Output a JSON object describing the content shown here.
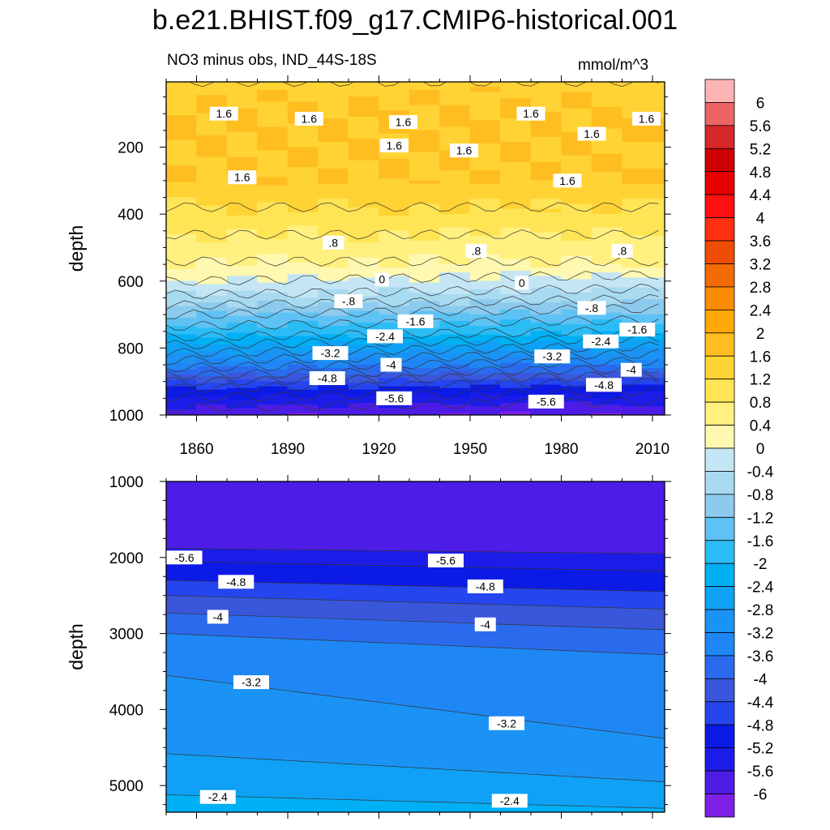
{
  "title": "b.e21.BHIST.f09_g17.CMIP6-historical.001",
  "subtitle": "NO3 minus obs, IND_44S-18S",
  "units": "mmol/m^3",
  "colors": {
    "pos": [
      "#fff8b0",
      "#fff080",
      "#ffe455",
      "#ffd334",
      "#ffbe20",
      "#ffa808",
      "#f98c02",
      "#f26c03",
      "#ef4d05",
      "#fe3010",
      "#ff1010",
      "#e60000",
      "#cc0000",
      "#d62828",
      "#ec6464",
      "#fcb4b4"
    ],
    "neg": [
      "#c4e6f4",
      "#a8daf0",
      "#8ccbee",
      "#5ec2f4",
      "#2cbcf5",
      "#00b0f4",
      "#0fa1f5",
      "#1a93f5",
      "#1e87f5",
      "#2a6bee",
      "#3a57db",
      "#2545ef",
      "#0c1ae6",
      "#1c1ce9",
      "#4d1ce6",
      "#7f20e6"
    ]
  },
  "chart_data": [
    {
      "type": "heatmap",
      "name": "upper-panel",
      "x": [
        1850,
        1860,
        1870,
        1880,
        1890,
        1900,
        1910,
        1920,
        1930,
        1940,
        1950,
        1960,
        1970,
        1980,
        1990,
        2000,
        2014
      ],
      "xticks": [
        1860,
        1890,
        1920,
        1950,
        1980,
        2010
      ],
      "xlim": [
        1850,
        2014
      ],
      "ylim": [
        1000,
        5
      ],
      "yticks": [
        200,
        400,
        600,
        800,
        1000
      ],
      "ylabel": "depth",
      "levels_note": "contour interval 0.4 mmol/m^3",
      "depth_profile": [
        [
          5,
          1.45
        ],
        [
          100,
          1.62
        ],
        [
          300,
          1.55
        ],
        [
          400,
          1.1
        ],
        [
          500,
          0.6
        ],
        [
          560,
          0.3
        ],
        [
          600,
          0.0
        ],
        [
          650,
          -0.5
        ],
        [
          700,
          -1.2
        ],
        [
          760,
          -1.9
        ],
        [
          820,
          -2.9
        ],
        [
          870,
          -3.8
        ],
        [
          920,
          -4.8
        ],
        [
          970,
          -5.5
        ],
        [
          1000,
          -5.9
        ]
      ],
      "contour_labels": [
        {
          "text": "1.6",
          "year": 1869,
          "depth": 100
        },
        {
          "text": "1.6",
          "year": 1897,
          "depth": 115
        },
        {
          "text": "1.6",
          "year": 1928,
          "depth": 125
        },
        {
          "text": "1.6",
          "year": 1970,
          "depth": 100
        },
        {
          "text": "1.6",
          "year": 2008,
          "depth": 115
        },
        {
          "text": "1.6",
          "year": 1990,
          "depth": 160
        },
        {
          "text": "1.6",
          "year": 1925,
          "depth": 195
        },
        {
          "text": "1.6",
          "year": 1948,
          "depth": 210
        },
        {
          "text": "1.6",
          "year": 1875,
          "depth": 290
        },
        {
          "text": "1.6",
          "year": 1982,
          "depth": 300
        },
        {
          "text": ".8",
          "year": 1905,
          "depth": 485
        },
        {
          "text": ".8",
          "year": 1952,
          "depth": 510
        },
        {
          "text": ".8",
          "year": 2000,
          "depth": 510
        },
        {
          "text": "0",
          "year": 1921,
          "depth": 595
        },
        {
          "text": "0",
          "year": 1967,
          "depth": 605
        },
        {
          "text": "-.8",
          "year": 1910,
          "depth": 660
        },
        {
          "text": "-.8",
          "year": 1990,
          "depth": 680
        },
        {
          "text": "-1.6",
          "year": 1932,
          "depth": 720
        },
        {
          "text": "-1.6",
          "year": 2005,
          "depth": 745
        },
        {
          "text": "-2.4",
          "year": 1922,
          "depth": 765
        },
        {
          "text": "-2.4",
          "year": 1993,
          "depth": 780
        },
        {
          "text": "-3.2",
          "year": 1904,
          "depth": 815
        },
        {
          "text": "-3.2",
          "year": 1977,
          "depth": 825
        },
        {
          "text": "-4",
          "year": 1924,
          "depth": 850
        },
        {
          "text": "-4",
          "year": 2003,
          "depth": 865
        },
        {
          "text": "-4.8",
          "year": 1903,
          "depth": 890
        },
        {
          "text": "-4.8",
          "year": 1994,
          "depth": 910
        },
        {
          "text": "-5.6",
          "year": 1925,
          "depth": 950
        },
        {
          "text": "-5.6",
          "year": 1975,
          "depth": 960
        }
      ]
    },
    {
      "type": "heatmap",
      "name": "lower-panel",
      "x": [
        1850,
        2014
      ],
      "xticks": [
        1860,
        1890,
        1920,
        1950,
        1980,
        2010
      ],
      "xlim": [
        1850,
        2014
      ],
      "ylim": [
        5350,
        1000
      ],
      "yticks": [
        1000,
        2000,
        3000,
        4000,
        5000
      ],
      "ylabel": "depth",
      "boundaries": [
        {
          "level": -5.6,
          "d0": 1880,
          "d1": 1950
        },
        {
          "level": -5.2,
          "d0": 2050,
          "d1": 2180
        },
        {
          "level": -4.8,
          "d0": 2300,
          "d1": 2450
        },
        {
          "level": -4.4,
          "d0": 2500,
          "d1": 2680
        },
        {
          "level": -4.0,
          "d0": 2730,
          "d1": 2950
        },
        {
          "level": -3.6,
          "d0": 3000,
          "d1": 3280
        },
        {
          "level": -3.2,
          "d0": 3550,
          "d1": 4380
        },
        {
          "level": -2.8,
          "d0": 4580,
          "d1": 4950
        },
        {
          "level": -2.4,
          "d0": 5120,
          "d1": 5300
        }
      ],
      "contour_labels": [
        {
          "text": "-5.6",
          "year": 1856,
          "depth": 2000
        },
        {
          "text": "-5.6",
          "year": 1942,
          "depth": 2040
        },
        {
          "text": "-4.8",
          "year": 1873,
          "depth": 2320
        },
        {
          "text": "-4.8",
          "year": 1955,
          "depth": 2380
        },
        {
          "text": "-4",
          "year": 1867,
          "depth": 2780
        },
        {
          "text": "-4",
          "year": 1955,
          "depth": 2880
        },
        {
          "text": "-3.2",
          "year": 1878,
          "depth": 3640
        },
        {
          "text": "-3.2",
          "year": 1962,
          "depth": 4180
        },
        {
          "text": "-2.4",
          "year": 1867,
          "depth": 5150
        },
        {
          "text": "-2.4",
          "year": 1963,
          "depth": 5200
        }
      ]
    },
    {
      "type": "colorbar",
      "name": "colorbar",
      "labels": [
        "6",
        "5.6",
        "5.2",
        "4.8",
        "4.4",
        "4",
        "3.6",
        "3.2",
        "2.8",
        "2.4",
        "2",
        "1.6",
        "1.2",
        "0.8",
        "0.4",
        "0",
        "-0.4",
        "-0.8",
        "-1.2",
        "-1.6",
        "-2",
        "-2.4",
        "-2.8",
        "-3.2",
        "-3.6",
        "-4",
        "-4.4",
        "-4.8",
        "-5.2",
        "-5.6",
        "-6"
      ]
    }
  ]
}
